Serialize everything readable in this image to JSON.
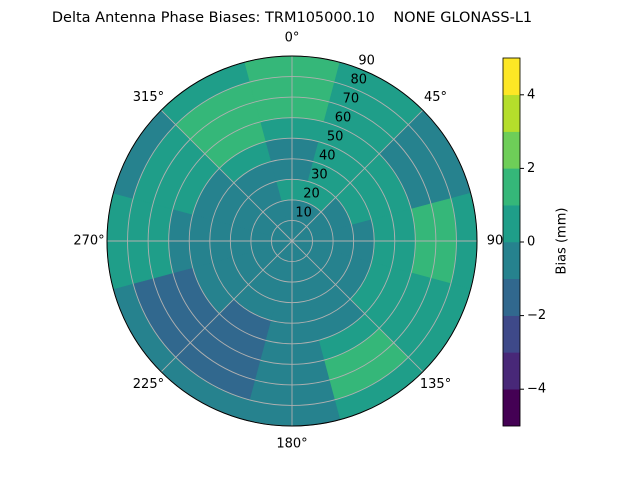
{
  "chart_data": {
    "type": "polar-contour",
    "title": "Delta Antenna Phase Biases: TRM105000.10    NONE GLONASS-L1",
    "theta": [
      0,
      30,
      60,
      90,
      120,
      150,
      180,
      210,
      240,
      270,
      300,
      330
    ],
    "r_bins": [
      0,
      10,
      20,
      30,
      40,
      50,
      60,
      70,
      80,
      90
    ],
    "z": [
      [
        -0.5,
        -0.5,
        -0.5,
        -0.5,
        -0.5,
        -0.5,
        -0.5,
        -0.5,
        -0.5,
        -0.5,
        -0.5,
        -0.5
      ],
      [
        -0.5,
        -0.5,
        -0.5,
        -0.5,
        -0.5,
        -0.5,
        -0.5,
        -0.5,
        -0.5,
        -0.5,
        -0.5,
        -0.5
      ],
      [
        0.5,
        0.5,
        -0.5,
        -0.5,
        -0.5,
        -0.5,
        -0.5,
        -0.5,
        -0.5,
        -0.5,
        -0.5,
        -0.5
      ],
      [
        -0.5,
        0.5,
        0.5,
        -0.5,
        -0.5,
        -0.5,
        -0.5,
        -0.5,
        -0.5,
        -0.5,
        -0.5,
        -0.5
      ],
      [
        -0.5,
        0.5,
        0.5,
        0.5,
        0.5,
        -0.5,
        -0.5,
        -1.5,
        -0.5,
        -0.5,
        -0.5,
        0.5
      ],
      [
        0.5,
        0.5,
        0.5,
        0.5,
        0.5,
        0.5,
        -0.5,
        -1.5,
        -1.5,
        -0.5,
        0.5,
        1.5
      ],
      [
        1.5,
        0.5,
        -0.5,
        1.5,
        0.5,
        1.5,
        -0.5,
        -1.5,
        -1.5,
        0.5,
        0.5,
        1.5
      ],
      [
        1.5,
        0.5,
        -0.5,
        1.5,
        0.5,
        1.5,
        -0.5,
        -1.5,
        -1.5,
        0.5,
        0.5,
        1.5
      ],
      [
        1.5,
        0.5,
        -0.5,
        0.5,
        0.5,
        0.5,
        -0.5,
        -0.5,
        -0.5,
        0.5,
        -0.5,
        0.5
      ]
    ],
    "rlim": [
      0,
      90
    ],
    "rticks": [
      10,
      20,
      30,
      40,
      50,
      60,
      70,
      80,
      90
    ],
    "thetaticks": [
      {
        "value": 0,
        "label": "0°"
      },
      {
        "value": 45,
        "label": "45°"
      },
      {
        "value": 90,
        "label": "90"
      },
      {
        "value": 135,
        "label": "135°"
      },
      {
        "value": 180,
        "label": "180°"
      },
      {
        "value": 225,
        "label": "225°"
      },
      {
        "value": 270,
        "label": "270°"
      },
      {
        "value": 315,
        "label": "315°"
      }
    ],
    "grid": true,
    "colorbar": {
      "label": "Bias (mm)",
      "levels": [
        -5,
        -4,
        -3,
        -2,
        -1,
        0,
        1,
        2,
        3,
        4,
        5
      ],
      "colors": [
        "#440154",
        "#482878",
        "#3e4989",
        "#31688e",
        "#26828e",
        "#1f9e89",
        "#35b779",
        "#6ece58",
        "#b5de2b",
        "#fde725"
      ],
      "lim": [
        -5,
        5
      ],
      "ticks": [
        {
          "value": -4,
          "label": "−4"
        },
        {
          "value": -2,
          "label": "−2"
        },
        0,
        2,
        4
      ]
    }
  }
}
